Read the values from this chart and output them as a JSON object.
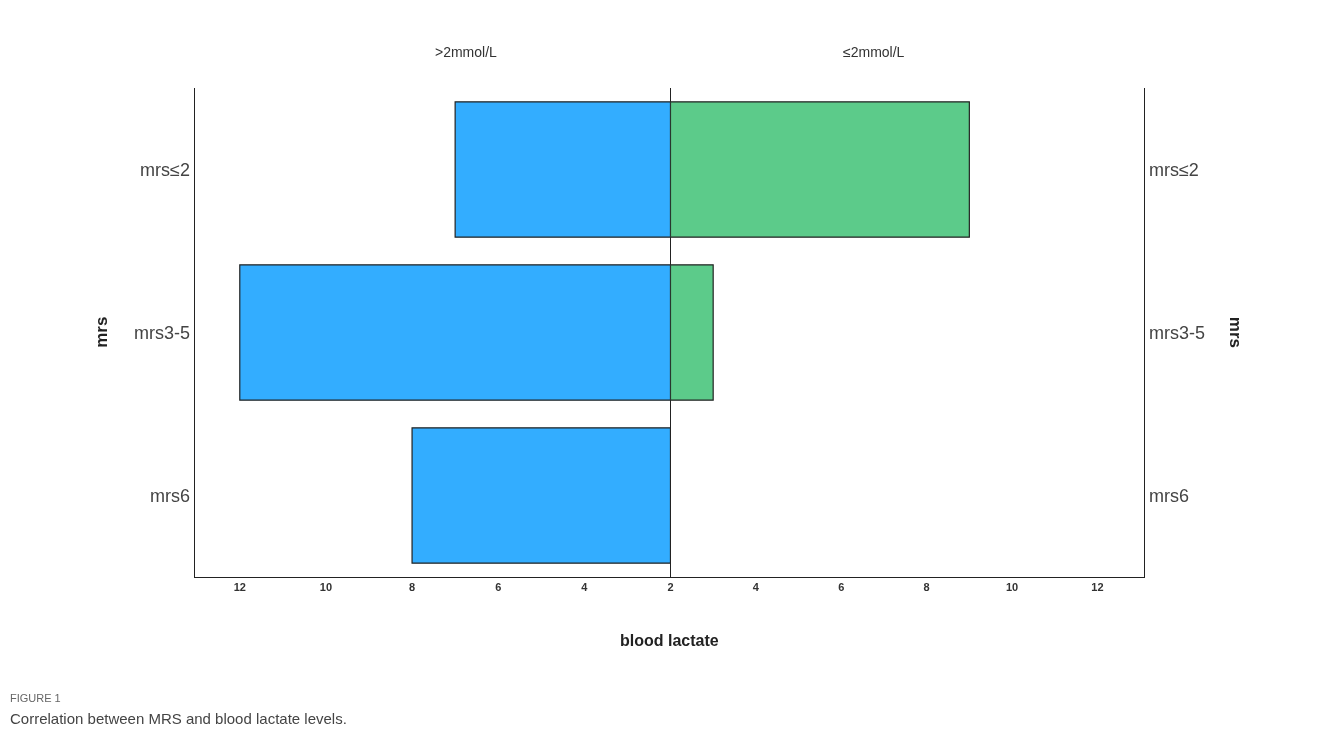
{
  "chart_data": [
    {
      "type": "bar",
      "orientation": "horizontal",
      "title": ">2mmol/L",
      "xlabel": "blood lactate",
      "ylabel": "mrs",
      "categories": [
        "mrs≤2",
        "mrs3-5",
        "mrs6"
      ],
      "base": [
        2,
        2,
        2
      ],
      "values": [
        5,
        10,
        6
      ],
      "color": "#33adff",
      "xlim": [
        13.05,
        2
      ],
      "xticks": [
        12,
        10,
        8,
        6,
        4,
        2
      ],
      "grid": false,
      "legend": false,
      "annotations": [
        "FIGURE 1",
        "Correlation between MRS and blood lactate levels."
      ]
    },
    {
      "type": "bar",
      "orientation": "horizontal",
      "title": "≤2mmol/L",
      "ylabel": "mrs",
      "categories": [
        "mrs≤2",
        "mrs3-5",
        "mrs6"
      ],
      "base": [
        2,
        2,
        null
      ],
      "values": [
        7,
        1,
        null
      ],
      "color": "#5ccb8a",
      "xlim": [
        2,
        13.1
      ],
      "xticks": [
        4,
        6,
        8,
        10,
        12
      ],
      "grid": false,
      "legend": false
    }
  ]
}
